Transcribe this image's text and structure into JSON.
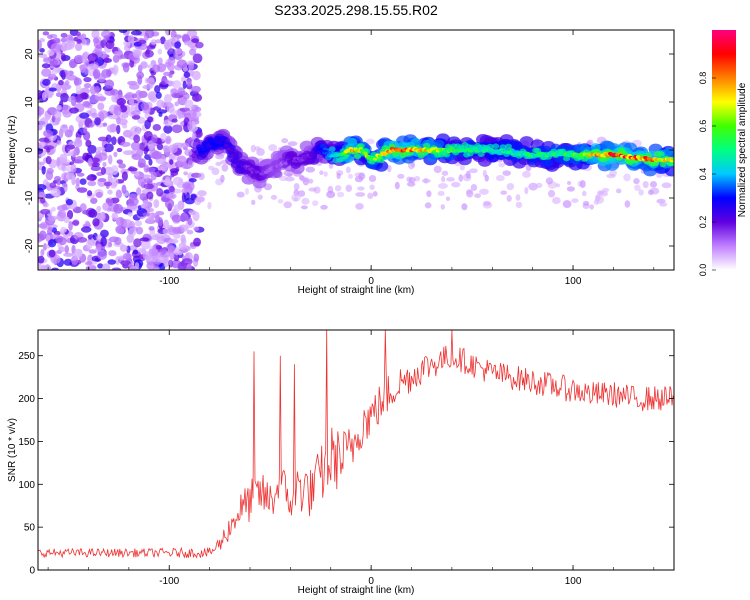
{
  "page_title": "S233.2025.298.15.55.R02",
  "chart_data": [
    {
      "type": "heatmap",
      "title": "S233.2025.298.15.55.R02",
      "xlabel": "Height of straight line (km)",
      "ylabel": "Frequency (Hz)",
      "xlim": [
        -165,
        150
      ],
      "ylim": [
        -25,
        25
      ],
      "xticks": [
        -100,
        0,
        100
      ],
      "yticks": [
        -20,
        -10,
        0,
        10,
        20
      ],
      "colorbar": {
        "label": "Normalized spectral amplitude",
        "range": [
          0,
          1
        ],
        "ticks": [
          "0.0",
          "0.2",
          "0.4",
          "0.6",
          "0.8"
        ],
        "colors": [
          "#ffffff",
          "#c080ff",
          "#6000e0",
          "#0000ff",
          "#00c8ff",
          "#00ff80",
          "#40ff00",
          "#ffff00",
          "#ff8000",
          "#ff0000",
          "#ff0080"
        ]
      },
      "ridge": {
        "x": [
          -85,
          -80,
          -75,
          -70,
          -65,
          -60,
          -55,
          -50,
          -45,
          -40,
          -35,
          -30,
          -25,
          -20,
          -15,
          -10,
          -5,
          0,
          10,
          20,
          40,
          60,
          80,
          100,
          120,
          140,
          150
        ],
        "freq": [
          0,
          1,
          2,
          0,
          -3,
          -4,
          -5,
          -4,
          -3,
          -2,
          -2,
          -1,
          0,
          -1,
          -1,
          0,
          0,
          -2,
          0,
          0,
          0,
          0,
          -1,
          -1,
          -1,
          -2,
          -2
        ],
        "amplitude": [
          0.3,
          0.3,
          0.3,
          0.25,
          0.25,
          0.2,
          0.2,
          0.15,
          0.15,
          0.2,
          0.2,
          0.2,
          0.3,
          0.4,
          0.5,
          0.9,
          0.7,
          0.6,
          0.9,
          0.85,
          0.6,
          0.5,
          0.55,
          0.6,
          0.95,
          0.85,
          0.7
        ]
      }
    },
    {
      "type": "line",
      "xlabel": "Height of straight line (km)",
      "ylabel": "SNR (10 * v/v)",
      "xlim": [
        -165,
        150
      ],
      "ylim": [
        0,
        280
      ],
      "xticks": [
        -100,
        0,
        100
      ],
      "yticks": [
        0,
        50,
        100,
        150,
        200,
        250
      ],
      "series": [
        {
          "name": "SNR",
          "color": "#ee3333",
          "x": [
            -165,
            -120,
            -80,
            -75,
            -70,
            -65,
            -60,
            -55,
            -50,
            -45,
            -40,
            -35,
            -30,
            -25,
            -20,
            -15,
            -10,
            -5,
            0,
            5,
            10,
            15,
            20,
            25,
            30,
            35,
            40,
            50,
            60,
            70,
            80,
            90,
            100,
            110,
            120,
            130,
            140,
            150
          ],
          "values": [
            20,
            20,
            20,
            30,
            50,
            70,
            80,
            90,
            80,
            100,
            80,
            100,
            90,
            110,
            130,
            130,
            140,
            170,
            180,
            195,
            210,
            220,
            225,
            235,
            240,
            245,
            250,
            240,
            230,
            225,
            220,
            215,
            210,
            205,
            205,
            200,
            200,
            200
          ],
          "noise": [
            5,
            5,
            6,
            10,
            15,
            20,
            25,
            25,
            25,
            30,
            25,
            35,
            30,
            35,
            40,
            35,
            30,
            30,
            25,
            25,
            25,
            20,
            18,
            18,
            18,
            16,
            15,
            15,
            15,
            15,
            15,
            15,
            15,
            15,
            15,
            15,
            15,
            15
          ]
        }
      ],
      "spikes": [
        {
          "x": -58,
          "value": 255
        },
        {
          "x": -45,
          "value": 250
        },
        {
          "x": -38,
          "value": 240
        },
        {
          "x": -22,
          "value": 280
        },
        {
          "x": 7,
          "value": 280
        },
        {
          "x": 40,
          "value": 280
        }
      ]
    }
  ]
}
